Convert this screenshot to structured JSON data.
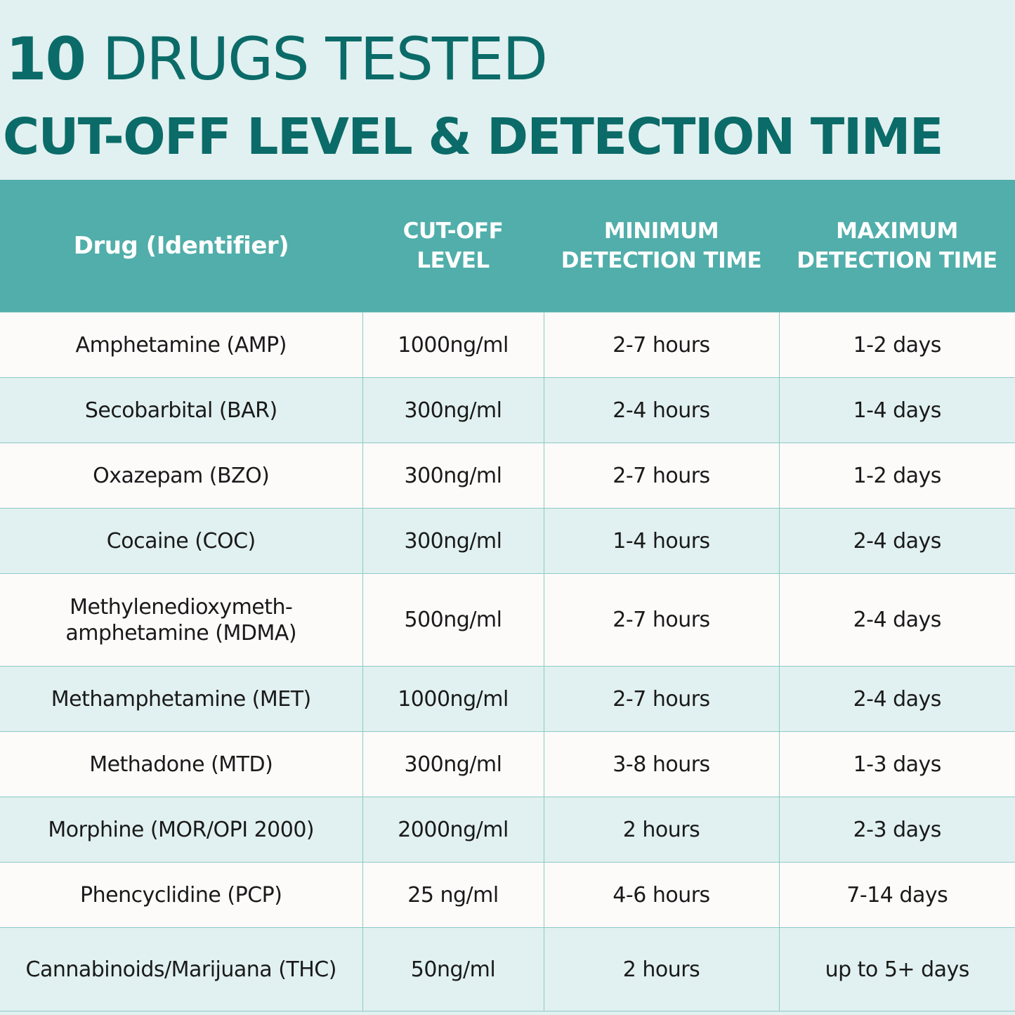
{
  "header": {
    "title_number": "10",
    "title_rest": "DRUGS TESTED",
    "subtitle": "CUT-OFF LEVEL & DETECTION TIME"
  },
  "table": {
    "columns": [
      "Drug (Identifier)",
      "CUT-OFF LEVEL",
      "MINIMUM DETECTION TIME",
      "MAXIMUM DETECTION TIME"
    ],
    "column_lines": [
      [
        "Drug (Identifier)"
      ],
      [
        "CUT-OFF",
        "LEVEL"
      ],
      [
        "MINIMUM",
        "DETECTION TIME"
      ],
      [
        "MAXIMUM",
        "DETECTION TIME"
      ]
    ],
    "rows": [
      {
        "drug": "Amphetamine (AMP)",
        "cutoff": "1000ng/ml",
        "min": "2-7 hours",
        "max": "1-2 days"
      },
      {
        "drug": "Secobarbital (BAR)",
        "cutoff": "300ng/ml",
        "min": "2-4 hours",
        "max": "1-4 days"
      },
      {
        "drug": "Oxazepam (BZO)",
        "cutoff": "300ng/ml",
        "min": "2-7 hours",
        "max": "1-2 days"
      },
      {
        "drug": "Cocaine (COC)",
        "cutoff": "300ng/ml",
        "min": "1-4 hours",
        "max": "2-4 days"
      },
      {
        "drug": "Methylenedioxymeth- amphetamine (MDMA)",
        "drug_lines": [
          "Methylenedioxymeth-",
          "amphetamine (MDMA)"
        ],
        "cutoff": "500ng/ml",
        "min": "2-7 hours",
        "max": "2-4 days"
      },
      {
        "drug": "Methamphetamine (MET)",
        "cutoff": "1000ng/ml",
        "min": "2-7 hours",
        "max": "2-4 days"
      },
      {
        "drug": "Methadone (MTD)",
        "cutoff": "300ng/ml",
        "min": "3-8 hours",
        "max": "1-3 days"
      },
      {
        "drug": "Morphine (MOR/OPI 2000)",
        "cutoff": "2000ng/ml",
        "min": "2 hours",
        "max": "2-3 days"
      },
      {
        "drug": "Phencyclidine (PCP)",
        "cutoff": "25 ng/ml",
        "min": "4-6 hours",
        "max": "7-14 days"
      },
      {
        "drug": "Cannabinoids/Marijuana (THC)",
        "cutoff": "50ng/ml",
        "min": "2 hours",
        "max": "up to 5+ days"
      }
    ]
  },
  "colors": {
    "title": "#0b6b68",
    "header_bg": "#51aeaa",
    "band_bg": "#e1f0f0",
    "row_bg": "#fdfafa",
    "grid_line": "#8ccac6"
  }
}
